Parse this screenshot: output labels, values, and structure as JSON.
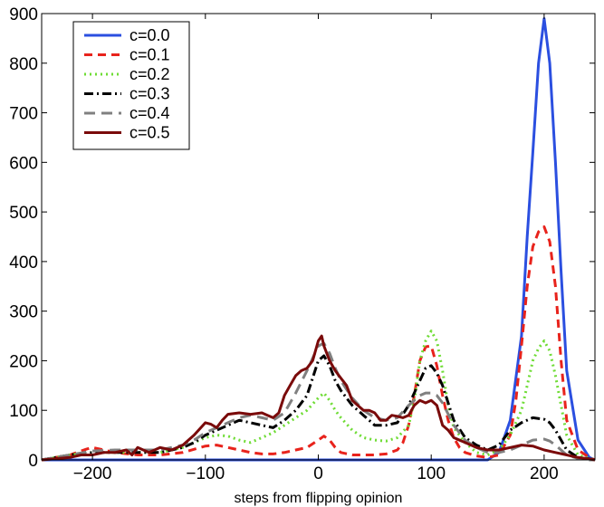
{
  "chart_data": {
    "type": "line",
    "title": "",
    "xlabel": "steps from flipping opinion",
    "ylabel": "",
    "xlim": [
      -245,
      245
    ],
    "ylim": [
      0,
      900
    ],
    "xticks": [
      -200,
      -100,
      0,
      100,
      200
    ],
    "yticks": [
      0,
      100,
      200,
      300,
      400,
      500,
      600,
      700,
      800,
      900
    ],
    "grid": false,
    "legend_position": "top-left",
    "series": [
      {
        "name": "c=0.0",
        "color": "#2b4fe0",
        "dash": "solid",
        "x": [
          -245,
          140,
          150,
          160,
          170,
          180,
          185,
          190,
          195,
          200,
          205,
          210,
          215,
          220,
          230,
          240,
          245
        ],
        "y": [
          0,
          0,
          0,
          15,
          80,
          250,
          450,
          620,
          800,
          890,
          800,
          600,
          380,
          180,
          40,
          5,
          0
        ]
      },
      {
        "name": "c=0.1",
        "color": "#e8231c",
        "dash": "dashed",
        "x": [
          -245,
          -220,
          -205,
          -200,
          -190,
          -180,
          -160,
          -140,
          -120,
          -100,
          -90,
          -80,
          -70,
          -60,
          -50,
          -40,
          -30,
          -20,
          -10,
          0,
          5,
          10,
          15,
          20,
          30,
          40,
          50,
          60,
          70,
          75,
          80,
          85,
          90,
          95,
          100,
          105,
          110,
          115,
          120,
          125,
          130,
          140,
          150,
          160,
          170,
          175,
          180,
          185,
          190,
          195,
          200,
          205,
          210,
          215,
          220,
          230,
          240,
          245
        ],
        "y": [
          0,
          10,
          22,
          25,
          20,
          15,
          10,
          10,
          15,
          28,
          30,
          25,
          20,
          15,
          12,
          12,
          15,
          20,
          25,
          40,
          48,
          40,
          25,
          15,
          10,
          10,
          10,
          12,
          20,
          35,
          70,
          130,
          200,
          228,
          230,
          190,
          130,
          80,
          45,
          25,
          15,
          8,
          5,
          10,
          50,
          120,
          230,
          350,
          430,
          460,
          470,
          440,
          350,
          200,
          80,
          20,
          5,
          0
        ]
      },
      {
        "name": "c=0.2",
        "color": "#6fdc35",
        "dash": "dotted",
        "x": [
          -245,
          -220,
          -200,
          -180,
          -160,
          -140,
          -120,
          -110,
          -100,
          -90,
          -80,
          -70,
          -60,
          -50,
          -40,
          -30,
          -20,
          -10,
          0,
          5,
          10,
          15,
          20,
          30,
          40,
          50,
          60,
          70,
          80,
          85,
          90,
          95,
          100,
          105,
          110,
          115,
          120,
          130,
          140,
          150,
          160,
          170,
          180,
          185,
          190,
          195,
          200,
          205,
          210,
          215,
          220,
          230,
          240,
          245
        ],
        "y": [
          0,
          10,
          15,
          15,
          15,
          15,
          25,
          35,
          45,
          50,
          48,
          40,
          35,
          45,
          55,
          70,
          85,
          100,
          125,
          135,
          120,
          100,
          85,
          60,
          45,
          40,
          38,
          45,
          70,
          120,
          200,
          240,
          260,
          240,
          180,
          110,
          65,
          35,
          15,
          10,
          20,
          50,
          100,
          150,
          200,
          225,
          240,
          220,
          170,
          110,
          50,
          10,
          3,
          0
        ]
      },
      {
        "name": "c=0.3",
        "color": "#000000",
        "dash": "dashdot",
        "x": [
          -245,
          -220,
          -200,
          -180,
          -160,
          -140,
          -120,
          -110,
          -100,
          -90,
          -80,
          -70,
          -60,
          -50,
          -40,
          -30,
          -20,
          -10,
          0,
          5,
          10,
          15,
          20,
          30,
          40,
          50,
          60,
          70,
          80,
          90,
          95,
          100,
          105,
          110,
          120,
          130,
          140,
          150,
          160,
          170,
          180,
          190,
          200,
          205,
          210,
          220,
          230,
          240,
          245
        ],
        "y": [
          0,
          10,
          15,
          15,
          15,
          15,
          25,
          35,
          50,
          60,
          70,
          80,
          75,
          70,
          65,
          80,
          100,
          130,
          200,
          210,
          190,
          160,
          140,
          110,
          90,
          70,
          70,
          75,
          110,
          160,
          185,
          190,
          175,
          150,
          80,
          45,
          30,
          20,
          30,
          60,
          75,
          85,
          82,
          75,
          60,
          20,
          5,
          2,
          0
        ]
      },
      {
        "name": "c=0.4",
        "color": "#808080",
        "dash": "longdash",
        "x": [
          -245,
          -220,
          -200,
          -180,
          -160,
          -140,
          -120,
          -110,
          -100,
          -90,
          -80,
          -70,
          -60,
          -50,
          -40,
          -30,
          -20,
          -10,
          0,
          5,
          10,
          15,
          20,
          30,
          40,
          50,
          60,
          70,
          80,
          90,
          95,
          100,
          105,
          110,
          120,
          130,
          140,
          150,
          160,
          170,
          180,
          190,
          200,
          205,
          210,
          220,
          230,
          240,
          245
        ],
        "y": [
          0,
          10,
          18,
          20,
          20,
          20,
          30,
          40,
          55,
          65,
          75,
          85,
          90,
          85,
          80,
          95,
          135,
          180,
          230,
          235,
          215,
          185,
          160,
          125,
          100,
          85,
          80,
          85,
          110,
          130,
          135,
          135,
          130,
          115,
          70,
          40,
          25,
          15,
          15,
          20,
          30,
          40,
          42,
          38,
          30,
          10,
          3,
          0,
          0
        ]
      },
      {
        "name": "c=0.5",
        "color": "#7a0a0a",
        "dash": "solid",
        "x": [
          -245,
          -220,
          -210,
          -200,
          -190,
          -180,
          -170,
          -165,
          -160,
          -150,
          -140,
          -130,
          -120,
          -110,
          -100,
          -95,
          -90,
          -85,
          -80,
          -70,
          -60,
          -50,
          -45,
          -40,
          -35,
          -30,
          -25,
          -20,
          -15,
          -10,
          -5,
          0,
          3,
          5,
          10,
          15,
          20,
          25,
          30,
          35,
          40,
          45,
          50,
          55,
          60,
          65,
          70,
          75,
          80,
          85,
          90,
          95,
          100,
          105,
          110,
          115,
          120,
          130,
          140,
          150,
          160,
          170,
          180,
          190,
          200,
          210,
          220,
          230,
          240,
          245
        ],
        "y": [
          0,
          5,
          10,
          10,
          15,
          15,
          20,
          10,
          25,
          15,
          25,
          20,
          30,
          50,
          75,
          72,
          65,
          80,
          92,
          95,
          92,
          95,
          90,
          85,
          95,
          130,
          150,
          170,
          180,
          185,
          200,
          240,
          250,
          230,
          200,
          180,
          165,
          150,
          120,
          110,
          100,
          100,
          95,
          80,
          80,
          90,
          88,
          85,
          90,
          110,
          120,
          115,
          120,
          110,
          70,
          60,
          45,
          35,
          25,
          20,
          20,
          25,
          30,
          28,
          20,
          15,
          10,
          5,
          2,
          0
        ]
      }
    ]
  }
}
